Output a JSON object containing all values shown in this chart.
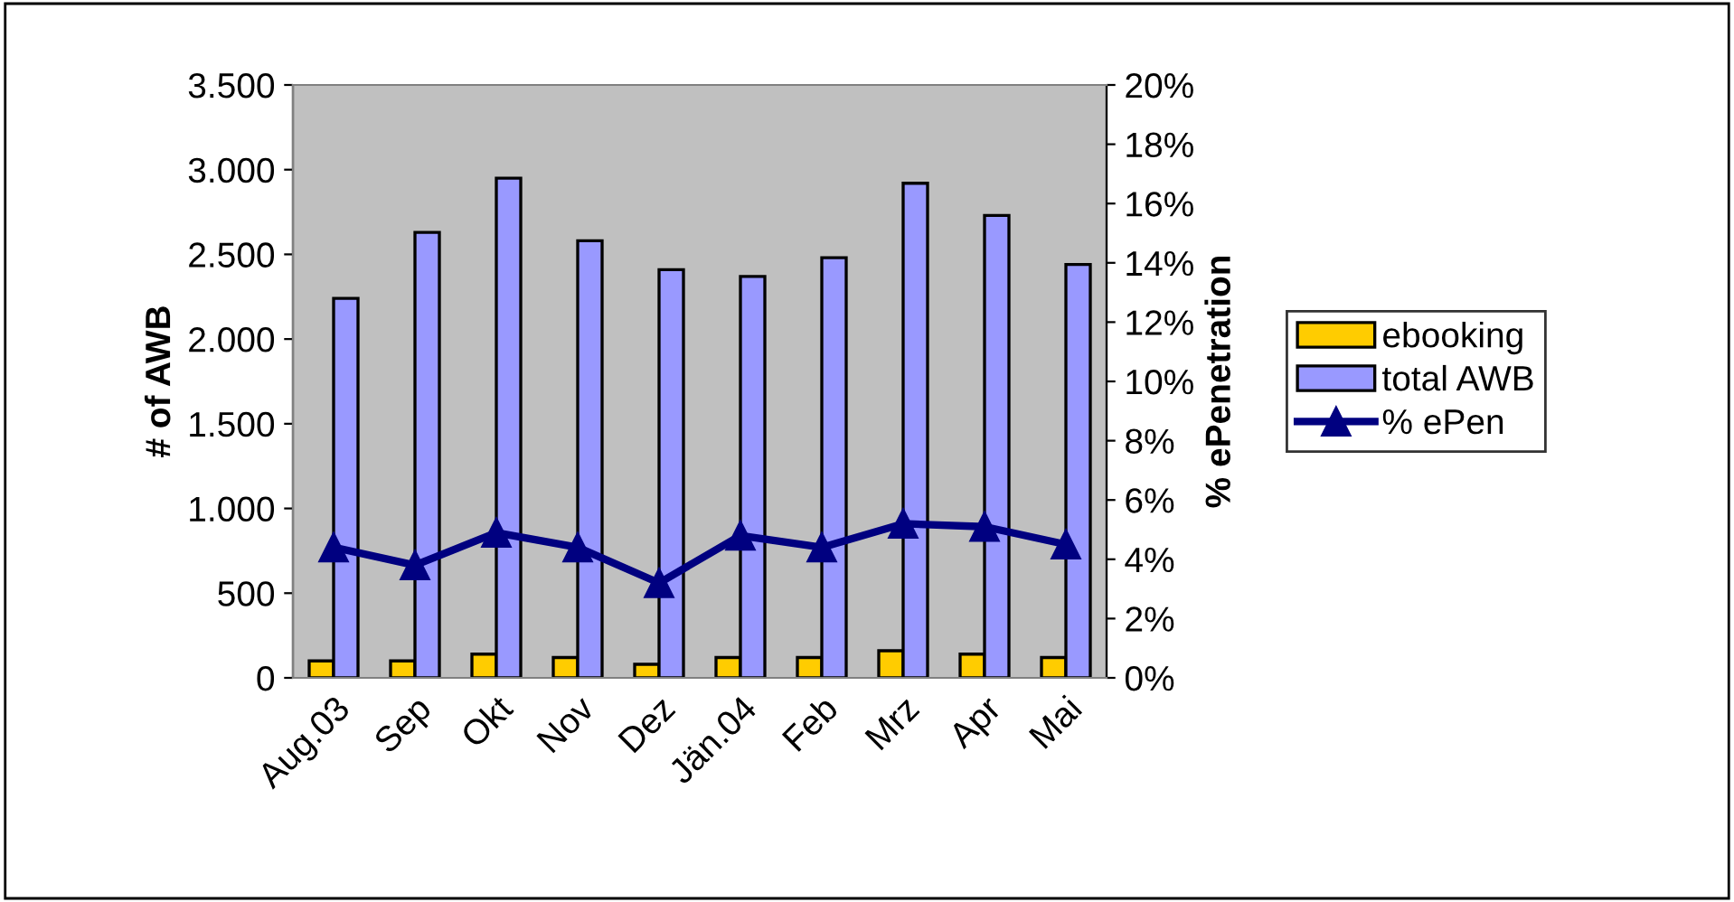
{
  "chart_data": {
    "type": "bar",
    "ylabel": "# of AWB",
    "y2label": "% ePenetration",
    "categories": [
      "Aug.03",
      "Sep",
      "Okt",
      "Nov",
      "Dez",
      "Jän.04",
      "Feb",
      "Mrz",
      "Apr",
      "Mai"
    ],
    "series": [
      {
        "name": "ebooking",
        "color": "#ffcc00",
        "values": [
          100,
          100,
          140,
          120,
          80,
          120,
          120,
          160,
          140,
          120
        ]
      },
      {
        "name": "total AWB",
        "color": "#9999ff",
        "values": [
          2240,
          2630,
          2950,
          2580,
          2410,
          2370,
          2480,
          2920,
          2730,
          2440
        ]
      },
      {
        "name": "% ePen",
        "type": "line",
        "axis": "y2",
        "color": "#000080",
        "marker": "triangle",
        "values": [
          4.4,
          3.8,
          4.9,
          4.4,
          3.2,
          4.8,
          4.4,
          5.2,
          5.1,
          4.5
        ]
      }
    ],
    "ylim": [
      0,
      3500
    ],
    "yticks": [
      {
        "value": 0,
        "label": "0"
      },
      {
        "value": 500,
        "label": "500"
      },
      {
        "value": 1000,
        "label": "1.000"
      },
      {
        "value": 1500,
        "label": "1.500"
      },
      {
        "value": 2000,
        "label": "2.000"
      },
      {
        "value": 2500,
        "label": "2.500"
      },
      {
        "value": 3000,
        "label": "3.000"
      },
      {
        "value": 3500,
        "label": "3.500"
      }
    ],
    "y2lim": [
      0,
      20
    ],
    "y2ticks": [
      {
        "value": 0,
        "label": "0%"
      },
      {
        "value": 2,
        "label": "2%"
      },
      {
        "value": 4,
        "label": "4%"
      },
      {
        "value": 6,
        "label": "6%"
      },
      {
        "value": 8,
        "label": "8%"
      },
      {
        "value": 10,
        "label": "10%"
      },
      {
        "value": 12,
        "label": "12%"
      },
      {
        "value": 14,
        "label": "14%"
      },
      {
        "value": 16,
        "label": "16%"
      },
      {
        "value": 18,
        "label": "18%"
      },
      {
        "value": 20,
        "label": "20%"
      }
    ],
    "grid": false,
    "legend": "right"
  }
}
